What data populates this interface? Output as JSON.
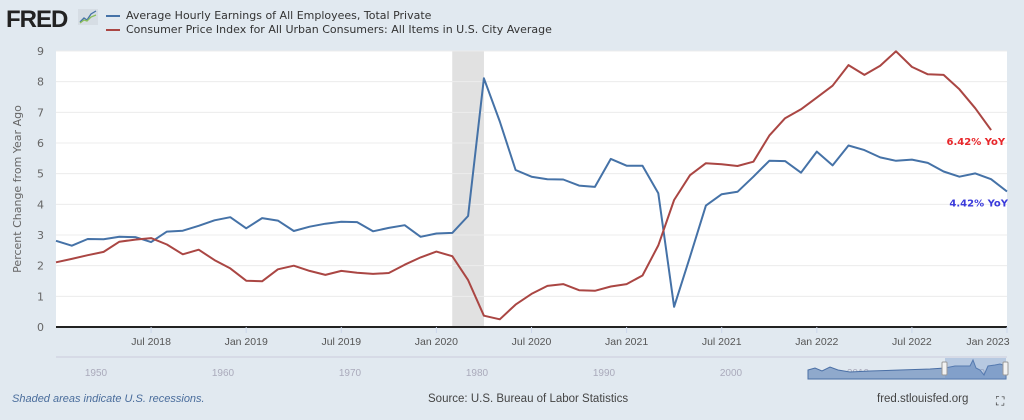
{
  "header": {
    "logo": "FRED"
  },
  "chart_data": {
    "type": "line",
    "ylabel": "Percent Change from Year Ago",
    "ylim": [
      0,
      9
    ],
    "yticks": [
      "0",
      "1",
      "2",
      "3",
      "4",
      "5",
      "6",
      "7",
      "8",
      "9"
    ],
    "x_start": "2018-01",
    "x_end": "2023-01",
    "xticks": [
      {
        "label": "Jul 2018",
        "date": "2018-07"
      },
      {
        "label": "Jan 2019",
        "date": "2019-01"
      },
      {
        "label": "Jul 2019",
        "date": "2019-07"
      },
      {
        "label": "Jan 2020",
        "date": "2020-01"
      },
      {
        "label": "Jul 2020",
        "date": "2020-07"
      },
      {
        "label": "Jan 2021",
        "date": "2021-01"
      },
      {
        "label": "Jul 2021",
        "date": "2021-07"
      },
      {
        "label": "Jan 2022",
        "date": "2022-01"
      },
      {
        "label": "Jul 2022",
        "date": "2022-07"
      },
      {
        "label": "Jan 2023",
        "date": "2023-01"
      }
    ],
    "grid": true,
    "legend": "top",
    "recessions": [
      {
        "start": "2020-02",
        "end": "2020-04"
      }
    ],
    "series": [
      {
        "name": "Average Hourly Earnings of All Employees, Total Private",
        "color": "#4572a7",
        "start": "2018-01",
        "end_label": "4.42% YoY",
        "end_label_color": "#3a3adb",
        "values": [
          2.81,
          2.65,
          2.87,
          2.86,
          2.94,
          2.93,
          2.77,
          3.11,
          3.14,
          3.3,
          3.48,
          3.58,
          3.22,
          3.55,
          3.47,
          3.13,
          3.27,
          3.37,
          3.43,
          3.42,
          3.12,
          3.23,
          3.32,
          2.94,
          3.05,
          3.07,
          3.62,
          8.11,
          6.7,
          5.12,
          4.9,
          4.82,
          4.81,
          4.61,
          4.57,
          5.48,
          5.26,
          5.26,
          4.36,
          0.66,
          2.29,
          3.96,
          4.33,
          4.41,
          4.9,
          5.42,
          5.41,
          5.03,
          5.72,
          5.27,
          5.92,
          5.77,
          5.53,
          5.42,
          5.46,
          5.35,
          5.07,
          4.9,
          5.01,
          4.82,
          4.42
        ]
      },
      {
        "name": "Consumer Price Index for All Urban Consumers: All Items in U.S. City Average",
        "color": "#aa4643",
        "start": "2018-01",
        "end_label": "6.42% YoY",
        "end_label_color": "#e8262a",
        "values": [
          2.11,
          2.22,
          2.34,
          2.45,
          2.78,
          2.85,
          2.9,
          2.69,
          2.37,
          2.52,
          2.18,
          1.91,
          1.51,
          1.49,
          1.88,
          2.0,
          1.83,
          1.7,
          1.83,
          1.77,
          1.73,
          1.76,
          2.03,
          2.27,
          2.46,
          2.31,
          1.53,
          0.37,
          0.25,
          0.73,
          1.08,
          1.34,
          1.4,
          1.2,
          1.18,
          1.32,
          1.4,
          1.68,
          2.66,
          4.14,
          4.95,
          5.34,
          5.31,
          5.25,
          5.39,
          6.24,
          6.81,
          7.1,
          7.48,
          7.87,
          8.54,
          8.22,
          8.52,
          8.99,
          8.48,
          8.24,
          8.22,
          7.75,
          7.13,
          6.42
        ]
      }
    ]
  },
  "navigator": {
    "decades": [
      "1950",
      "1960",
      "1970",
      "1980",
      "1990",
      "2000",
      "2010",
      "2020"
    ]
  },
  "footer": {
    "recession_note": "Shaded areas indicate U.S. recessions.",
    "source": "Source: U.S. Bureau of Labor Statistics",
    "site": "fred.stlouisfed.org",
    "fullscreen_icon": "fullscreen-icon"
  }
}
